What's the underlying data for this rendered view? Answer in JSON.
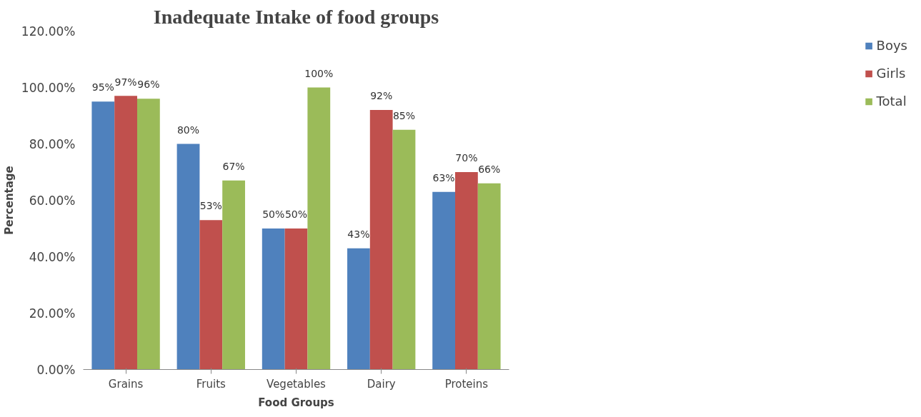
{
  "chart_data": {
    "type": "bar",
    "title": "Inadequate Intake of food groups",
    "xlabel": "Food Groups",
    "ylabel": "Percentage",
    "categories": [
      "Grains",
      "Fruits",
      "Vegetables",
      "Dairy",
      "Proteins"
    ],
    "series": [
      {
        "name": "Boys",
        "color": "#4f81bd",
        "values": [
          95,
          80,
          50,
          43,
          63
        ],
        "value_labels": [
          "95%",
          "80%",
          "50%",
          "43%",
          "63%"
        ]
      },
      {
        "name": "Girls",
        "color": "#c0504d",
        "values": [
          97,
          53,
          50,
          92,
          70
        ],
        "value_labels": [
          "97%",
          "53%",
          "50%",
          "92%",
          "70%"
        ]
      },
      {
        "name": "Total",
        "color": "#9bbb59",
        "values": [
          96,
          67,
          100,
          85,
          66
        ],
        "value_labels": [
          "96%",
          "67%",
          "100%",
          "85%",
          "66%"
        ]
      }
    ],
    "ylim": [
      0,
      120
    ],
    "yticks": [
      {
        "value": 0,
        "label": "0.00%"
      },
      {
        "value": 20,
        "label": "20.00%"
      },
      {
        "value": 40,
        "label": "40.00%"
      },
      {
        "value": 60,
        "label": "60.00%"
      },
      {
        "value": 80,
        "label": "80.00%"
      },
      {
        "value": 100,
        "label": "100.00%"
      },
      {
        "value": 120,
        "label": "120.00%"
      }
    ],
    "grid": false,
    "legend": "right"
  }
}
